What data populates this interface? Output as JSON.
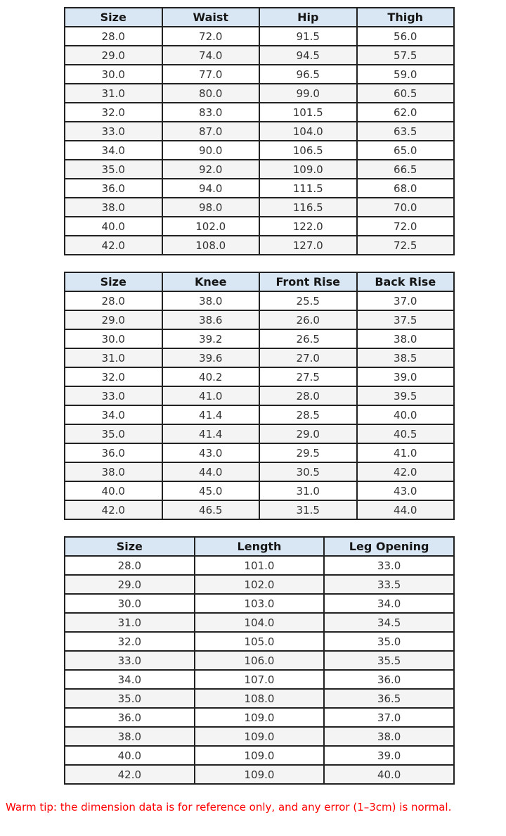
{
  "tables": [
    {
      "name": "waist-hip-thigh",
      "headers": [
        "Size",
        "Waist",
        "Hip",
        "Thigh"
      ],
      "rows": [
        [
          "28.0",
          "72.0",
          "91.5",
          "56.0"
        ],
        [
          "29.0",
          "74.0",
          "94.5",
          "57.5"
        ],
        [
          "30.0",
          "77.0",
          "96.5",
          "59.0"
        ],
        [
          "31.0",
          "80.0",
          "99.0",
          "60.5"
        ],
        [
          "32.0",
          "83.0",
          "101.5",
          "62.0"
        ],
        [
          "33.0",
          "87.0",
          "104.0",
          "63.5"
        ],
        [
          "34.0",
          "90.0",
          "106.5",
          "65.0"
        ],
        [
          "35.0",
          "92.0",
          "109.0",
          "66.5"
        ],
        [
          "36.0",
          "94.0",
          "111.5",
          "68.0"
        ],
        [
          "38.0",
          "98.0",
          "116.5",
          "70.0"
        ],
        [
          "40.0",
          "102.0",
          "122.0",
          "72.0"
        ],
        [
          "42.0",
          "108.0",
          "127.0",
          "72.5"
        ]
      ]
    },
    {
      "name": "knee-rise",
      "headers": [
        "Size",
        "Knee",
        "Front Rise",
        "Back Rise"
      ],
      "rows": [
        [
          "28.0",
          "38.0",
          "25.5",
          "37.0"
        ],
        [
          "29.0",
          "38.6",
          "26.0",
          "37.5"
        ],
        [
          "30.0",
          "39.2",
          "26.5",
          "38.0"
        ],
        [
          "31.0",
          "39.6",
          "27.0",
          "38.5"
        ],
        [
          "32.0",
          "40.2",
          "27.5",
          "39.0"
        ],
        [
          "33.0",
          "41.0",
          "28.0",
          "39.5"
        ],
        [
          "34.0",
          "41.4",
          "28.5",
          "40.0"
        ],
        [
          "35.0",
          "41.4",
          "29.0",
          "40.5"
        ],
        [
          "36.0",
          "43.0",
          "29.5",
          "41.0"
        ],
        [
          "38.0",
          "44.0",
          "30.5",
          "42.0"
        ],
        [
          "40.0",
          "45.0",
          "31.0",
          "43.0"
        ],
        [
          "42.0",
          "46.5",
          "31.5",
          "44.0"
        ]
      ]
    },
    {
      "name": "length-leg-opening",
      "headers": [
        "Size",
        "Length",
        "Leg Opening"
      ],
      "rows": [
        [
          "28.0",
          "101.0",
          "33.0"
        ],
        [
          "29.0",
          "102.0",
          "33.5"
        ],
        [
          "30.0",
          "103.0",
          "34.0"
        ],
        [
          "31.0",
          "104.0",
          "34.5"
        ],
        [
          "32.0",
          "105.0",
          "35.0"
        ],
        [
          "33.0",
          "106.0",
          "35.5"
        ],
        [
          "34.0",
          "107.0",
          "36.0"
        ],
        [
          "35.0",
          "108.0",
          "36.5"
        ],
        [
          "36.0",
          "109.0",
          "37.0"
        ],
        [
          "38.0",
          "109.0",
          "38.0"
        ],
        [
          "40.0",
          "109.0",
          "39.0"
        ],
        [
          "42.0",
          "109.0",
          "40.0"
        ]
      ]
    }
  ],
  "warning": {
    "text": "Warm tip: the dimension data is for reference only, and any error (1–3cm) is normal."
  },
  "colors": {
    "header_bg": "#d9e7f5",
    "stripe_bg": "#f4f4f4",
    "border": "#222222",
    "cell_text": "#333333",
    "warning_text": "#ff0000"
  }
}
